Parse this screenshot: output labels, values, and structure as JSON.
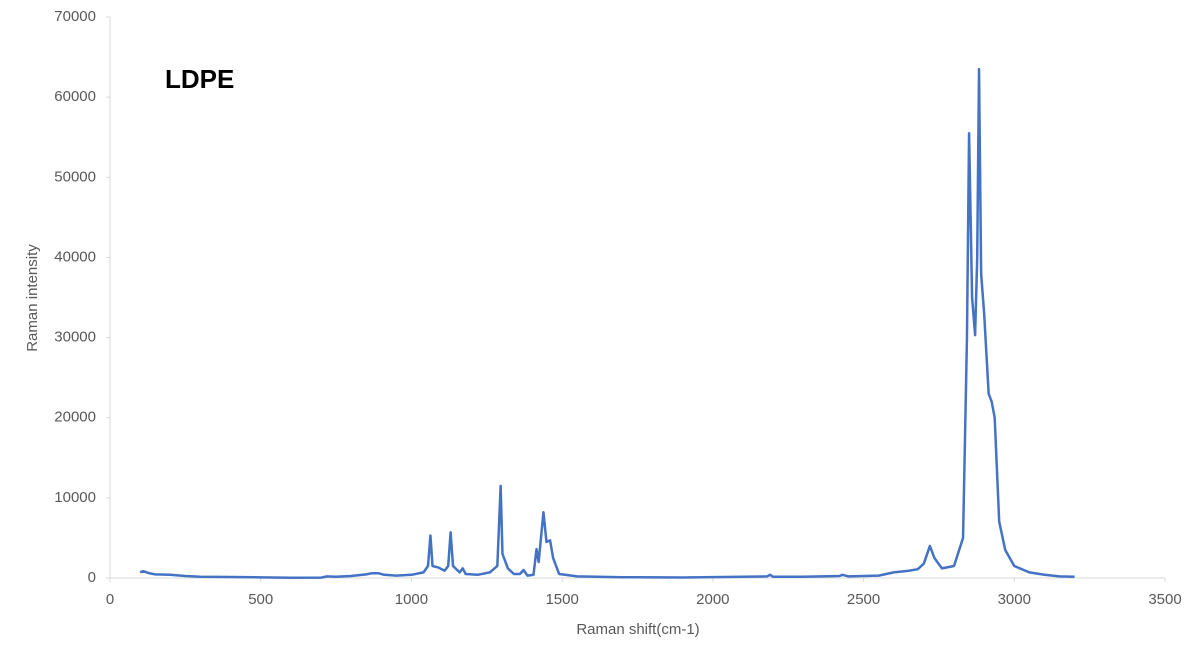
{
  "chart_data": {
    "type": "line",
    "annotation": "LDPE",
    "x_label": "Raman shift(cm-1)",
    "y_label": "Raman intensity",
    "xlim": [
      0,
      3500
    ],
    "ylim": [
      0,
      70000
    ],
    "xticks": [
      0,
      500,
      1000,
      1500,
      2000,
      2500,
      3000,
      3500
    ],
    "yticks": [
      0,
      10000,
      20000,
      30000,
      40000,
      50000,
      60000,
      70000
    ],
    "x": [
      100,
      110,
      130,
      150,
      200,
      250,
      300,
      400,
      500,
      600,
      700,
      720,
      750,
      800,
      850,
      870,
      890,
      910,
      950,
      1000,
      1040,
      1055,
      1063,
      1070,
      1090,
      1110,
      1122,
      1130,
      1138,
      1160,
      1170,
      1180,
      1220,
      1260,
      1285,
      1296,
      1302,
      1320,
      1340,
      1360,
      1372,
      1385,
      1405,
      1415,
      1422,
      1438,
      1448,
      1460,
      1470,
      1490,
      1550,
      1700,
      1900,
      2100,
      2180,
      2190,
      2200,
      2300,
      2420,
      2430,
      2450,
      2550,
      2600,
      2650,
      2680,
      2700,
      2720,
      2735,
      2760,
      2800,
      2830,
      2843,
      2850,
      2860,
      2870,
      2877,
      2883,
      2890,
      2900,
      2915,
      2925,
      2935,
      2950,
      2970,
      3000,
      3050,
      3100,
      3150,
      3200
    ],
    "series": [
      {
        "name": "LDPE",
        "color": "#4472c4",
        "values": [
          700,
          850,
          600,
          450,
          400,
          250,
          150,
          120,
          80,
          30,
          50,
          200,
          150,
          250,
          450,
          600,
          600,
          400,
          300,
          400,
          700,
          1500,
          5300,
          1500,
          1300,
          900,
          1500,
          5700,
          1500,
          700,
          1200,
          500,
          400,
          700,
          1500,
          11500,
          3000,
          1200,
          500,
          500,
          1000,
          300,
          400,
          3600,
          2000,
          8200,
          4500,
          4700,
          2500,
          500,
          200,
          100,
          60,
          150,
          200,
          400,
          150,
          150,
          250,
          400,
          200,
          300,
          700,
          900,
          1100,
          1800,
          4000,
          2500,
          1200,
          1500,
          5000,
          30000,
          55500,
          35000,
          30300,
          40000,
          63500,
          38000,
          33000,
          23000,
          22000,
          20000,
          7000,
          3500,
          1500,
          700,
          400,
          200,
          150
        ]
      }
    ]
  }
}
